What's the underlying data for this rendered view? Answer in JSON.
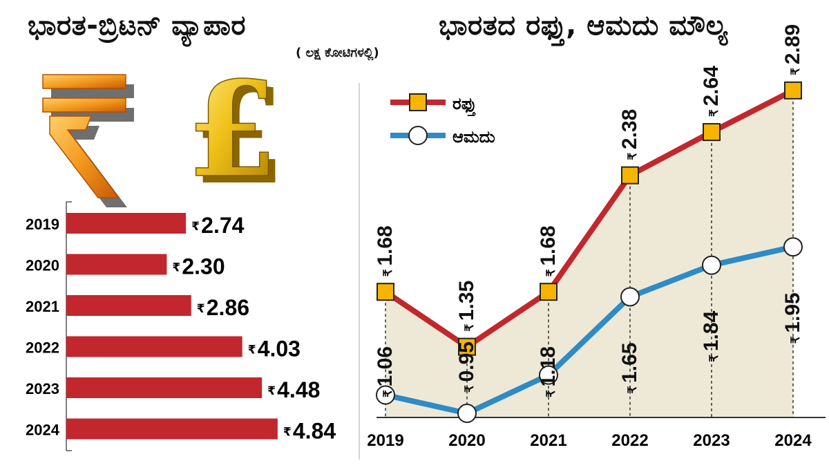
{
  "titles": {
    "left": "ಭಾರತ-ಬ್ರಿಟನ್ ವ್ಯಾಪಾರ",
    "unit": "( ಲಕ್ಷ ಕೋಟಿಗಳಲ್ಲಿ)",
    "right": "ಭಾರತದ ರಫ್ತು, ಆಮದು ಮೌಲ್ಯ"
  },
  "icons": [
    "rupee-3d-icon",
    "pound-3d-icon"
  ],
  "colors": {
    "bar": "#c1272d",
    "export": "#c1272d",
    "import": "#2e8bc6",
    "marker": "#f7b500",
    "fill": "#ebe5d0"
  },
  "chart_data": [
    {
      "type": "bar",
      "orientation": "horizontal",
      "categories": [
        "2019",
        "2020",
        "2021",
        "2022",
        "2023",
        "2024"
      ],
      "values": [
        2.74,
        2.3,
        2.86,
        4.03,
        4.48,
        4.84
      ],
      "value_labels": [
        "2.74",
        "2.30",
        "2.86",
        "4.03",
        "4.48",
        "4.84"
      ],
      "currency": "₹",
      "grid": false
    },
    {
      "type": "line",
      "x": [
        "2019",
        "2020",
        "2021",
        "2022",
        "2023",
        "2024"
      ],
      "currency": "₹",
      "legend_position": "top-left",
      "series": [
        {
          "name": "ರಫ್ತು",
          "values": [
            1.68,
            1.35,
            1.68,
            2.38,
            2.64,
            2.89
          ],
          "labels": [
            "1.68",
            "1.35",
            "1.68",
            "2.38",
            "2.64",
            "2.89"
          ],
          "marker": "square"
        },
        {
          "name": "ಆಮದು",
          "values": [
            1.06,
            0.95,
            1.18,
            1.65,
            1.84,
            1.95
          ],
          "labels": [
            "1.06",
            "0.95",
            "1.18",
            "1.65",
            "1.84",
            "1.95"
          ],
          "marker": "circle"
        }
      ]
    }
  ]
}
